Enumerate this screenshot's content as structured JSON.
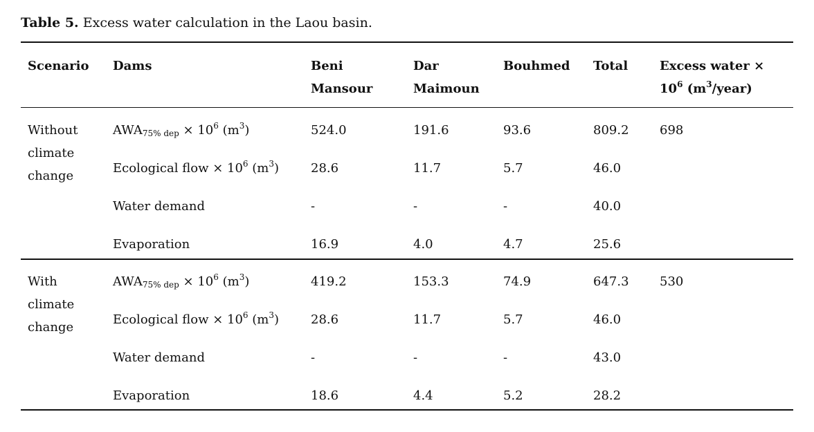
{
  "caption": {
    "label": "Table 5.",
    "text": "Excess water calculation in the Laou basin."
  },
  "table": {
    "header": [
      "Scenario",
      "Dams",
      "Beni Mansour",
      "Dar Maimoun",
      "Bouhmed",
      "Total",
      [
        "Excess water × 10",
        "6",
        " (m",
        "3",
        "/year)"
      ]
    ],
    "groups": [
      {
        "scenario": "Without climate change",
        "excess_water": "698",
        "rows": [
          [
            [
              "AWA",
              "75% dep",
              " × 10",
              "6",
              " (m",
              "3",
              ")"
            ],
            "524.0",
            "191.6",
            "93.6",
            "809.2"
          ],
          [
            [
              "Ecological flow × 10",
              "6",
              " (m",
              "3",
              ")"
            ],
            "28.6",
            "11.7",
            "5.7",
            "46.0"
          ],
          [
            "Water demand",
            "-",
            "-",
            "-",
            "40.0"
          ],
          [
            "Evaporation",
            "16.9",
            "4.0",
            "4.7",
            "25.6"
          ]
        ]
      },
      {
        "scenario": "With climate change",
        "excess_water": "530",
        "rows": [
          [
            [
              "AWA",
              "75% dep",
              " × 10",
              "6",
              " (m",
              "3",
              ")"
            ],
            "419.2",
            "153.3",
            "74.9",
            "647.3"
          ],
          [
            [
              "Ecological flow × 10",
              "6",
              " (m",
              "3",
              ")"
            ],
            "28.6",
            "11.7",
            "5.7",
            "46.0"
          ],
          [
            "Water demand",
            "-",
            "-",
            "-",
            "43.0"
          ],
          [
            "Evaporation",
            "18.6",
            "4.4",
            "5.2",
            "28.2"
          ]
        ]
      }
    ]
  }
}
